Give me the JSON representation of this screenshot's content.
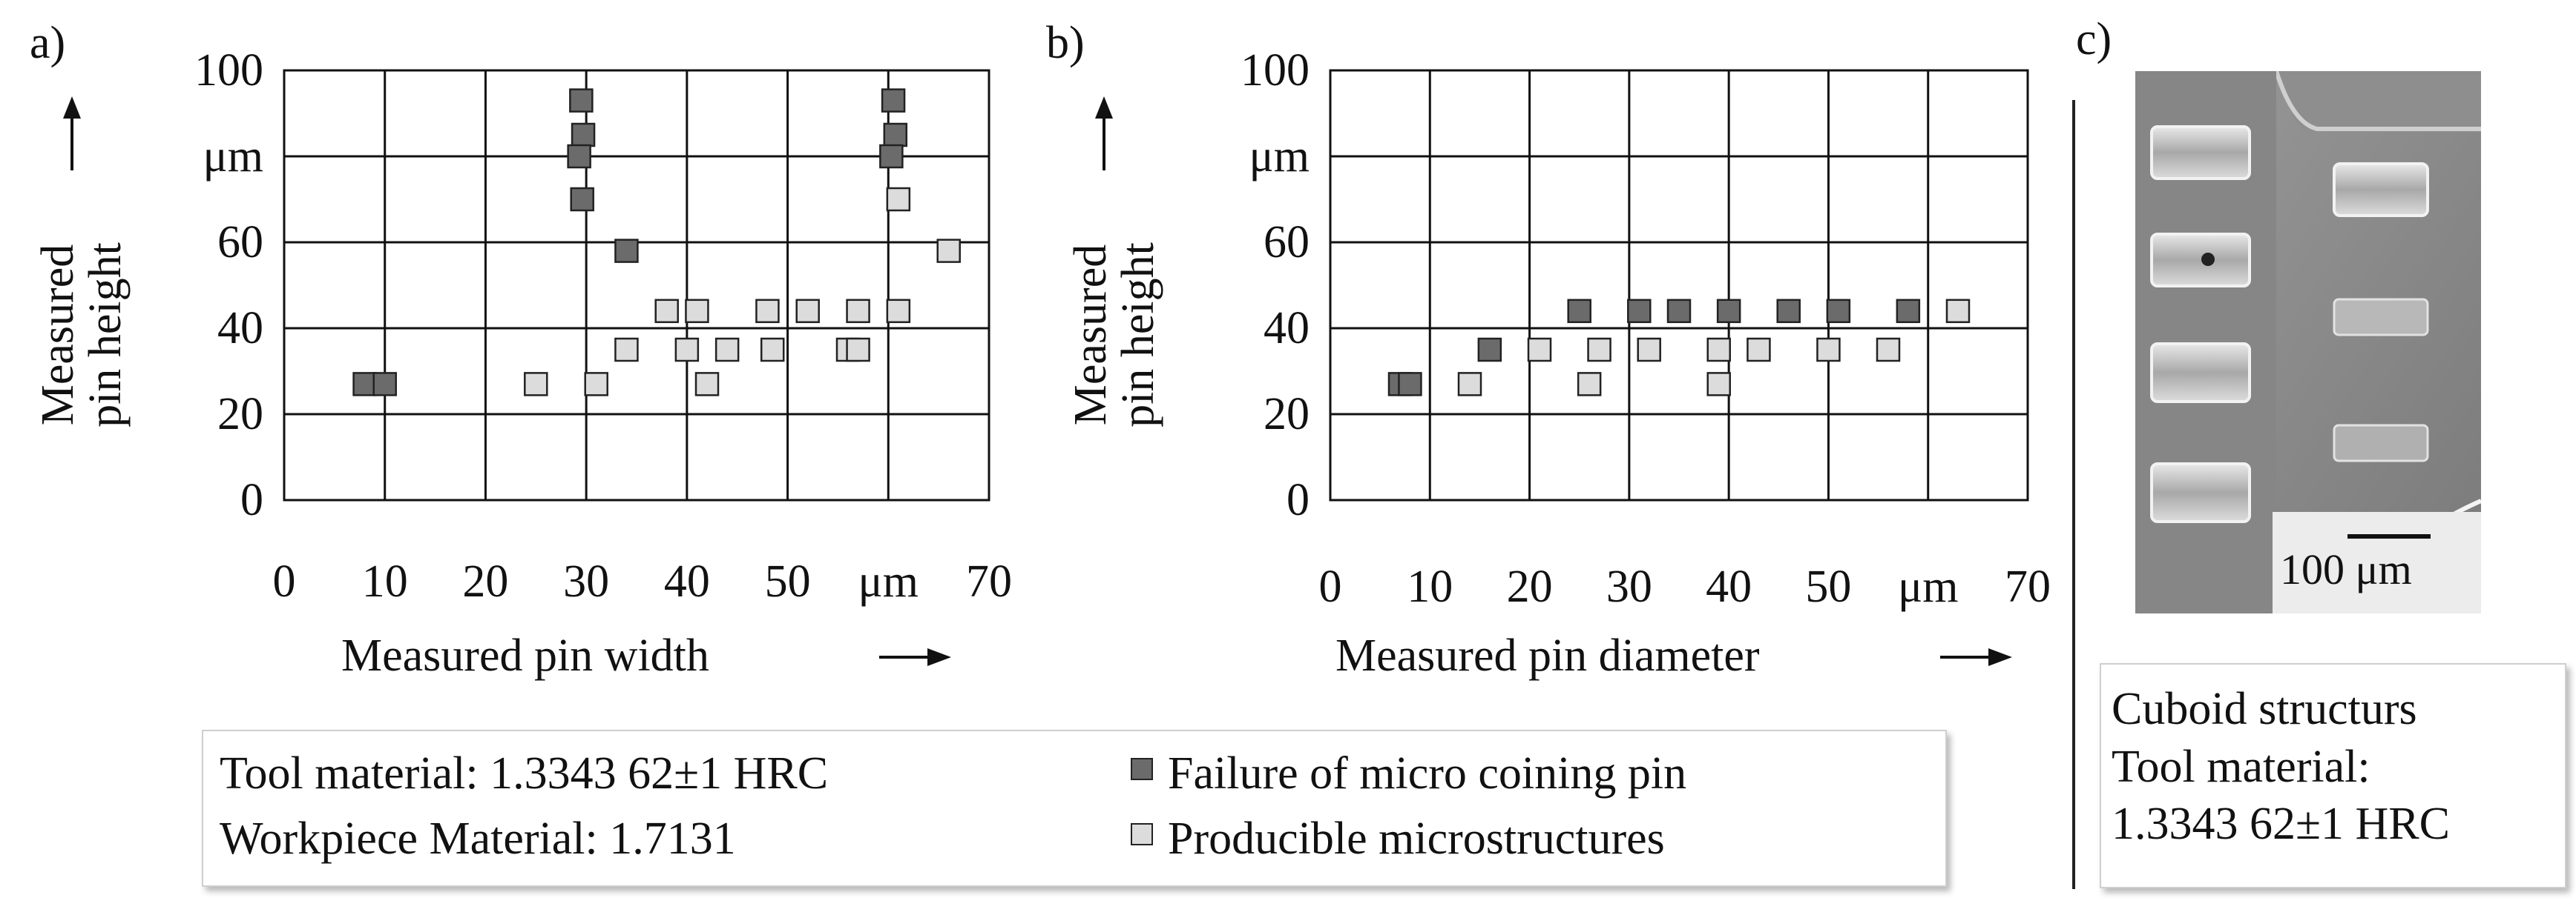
{
  "chart_data": [
    {
      "type": "scatter",
      "panel_label": "a)",
      "xlabel": "Measured pin width",
      "ylabel_line1": "Measured",
      "ylabel_line2": "pin height",
      "xlim": [
        0,
        70
      ],
      "ylim": [
        0,
        100
      ],
      "x_ticks": [
        "0",
        "10",
        "20",
        "30",
        "40",
        "50",
        "μm",
        "70"
      ],
      "y_ticks": [
        "100",
        "μm",
        "60",
        "40",
        "20",
        "0"
      ],
      "grid": true,
      "series": [
        {
          "name": "Failure of micro coining pin",
          "color": "#6b6b6b",
          "points": [
            [
              8,
              27
            ],
            [
              10,
              27
            ],
            [
              29.5,
              93
            ],
            [
              29.7,
              85
            ],
            [
              29.3,
              80
            ],
            [
              29.6,
              70
            ],
            [
              34,
              58
            ],
            [
              60.5,
              93
            ],
            [
              60.7,
              85
            ],
            [
              60.3,
              80
            ]
          ]
        },
        {
          "name": "Producible microstructures",
          "color": "#dcdcdc",
          "points": [
            [
              25,
              27
            ],
            [
              31,
              27
            ],
            [
              34,
              35
            ],
            [
              38,
              44
            ],
            [
              40,
              35
            ],
            [
              41,
              44
            ],
            [
              42,
              27
            ],
            [
              44,
              35
            ],
            [
              48,
              44
            ],
            [
              48.5,
              35
            ],
            [
              52,
              44
            ],
            [
              56,
              35
            ],
            [
              57,
              35
            ],
            [
              57,
              44
            ],
            [
              61,
              70
            ],
            [
              61,
              44
            ],
            [
              66,
              58
            ]
          ]
        }
      ]
    },
    {
      "type": "scatter",
      "panel_label": "b)",
      "xlabel": "Measured pin diameter",
      "ylabel_line1": "Measured",
      "ylabel_line2": "pin height",
      "xlim": [
        0,
        70
      ],
      "ylim": [
        0,
        100
      ],
      "x_ticks": [
        "0",
        "10",
        "20",
        "30",
        "40",
        "50",
        "μm",
        "70"
      ],
      "y_ticks": [
        "100",
        "μm",
        "60",
        "40",
        "20",
        "0"
      ],
      "grid": true,
      "series": [
        {
          "name": "Failure of micro coining pin",
          "color": "#6b6b6b",
          "points": [
            [
              7,
              27
            ],
            [
              8,
              27
            ],
            [
              16,
              35
            ],
            [
              25,
              44
            ],
            [
              31,
              44
            ],
            [
              35,
              44
            ],
            [
              40,
              44
            ],
            [
              46,
              44
            ],
            [
              51,
              44
            ],
            [
              58,
              44
            ]
          ]
        },
        {
          "name": "Producible microstructures",
          "color": "#dcdcdc",
          "points": [
            [
              14,
              27
            ],
            [
              21,
              35
            ],
            [
              26,
              27
            ],
            [
              27,
              35
            ],
            [
              32,
              35
            ],
            [
              39,
              35
            ],
            [
              39,
              27
            ],
            [
              43,
              35
            ],
            [
              50,
              35
            ],
            [
              56,
              35
            ],
            [
              63,
              44
            ]
          ]
        }
      ]
    }
  ],
  "info": {
    "tool_material": "Tool material: 1.3343 62±1 HRC",
    "workpiece_material": "Workpiece Material: 1.7131",
    "legend_failure": "Failure of micro coining pin",
    "legend_producible": "Producible microstructures",
    "failure_color": "#6b6b6b",
    "producible_color": "#dcdcdc"
  },
  "panel_c": {
    "label": "c)",
    "scale_bar": "100 μm",
    "caption": "Cuboid structurs\nTool material:\n1.3343 62±1 HRC"
  }
}
